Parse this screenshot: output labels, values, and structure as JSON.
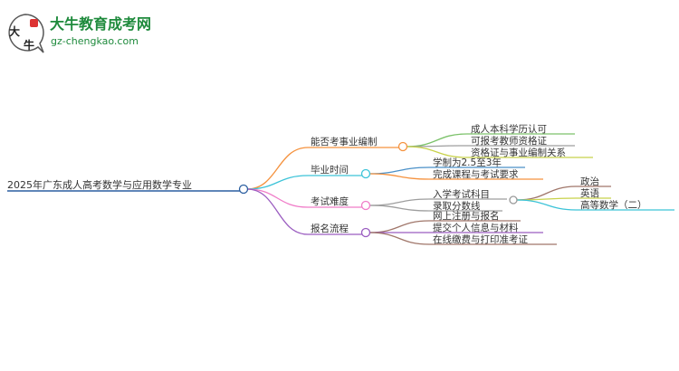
{
  "logo": {
    "name": "大牛教育成考网",
    "url": "gz-chengkao.com",
    "mark": "大牛"
  },
  "root": {
    "label": "2025年广东成人高考数学与应用数学专业"
  },
  "branches": [
    {
      "label": "能否考事业编制",
      "color": "#f5923e",
      "children": [
        {
          "label": "成人本科学历认可",
          "color": "#7cc26a"
        },
        {
          "label": "可报考教师资格证",
          "color": "#9e9e9e"
        },
        {
          "label": "资格证与事业编制关系",
          "color": "#c8d24a"
        }
      ]
    },
    {
      "label": "毕业时间",
      "color": "#3cc3d8",
      "children": [
        {
          "label": "学制为2.5至3年",
          "color": "#4a90c8"
        },
        {
          "label": "完成课程与考试要求",
          "color": "#f5923e"
        }
      ]
    },
    {
      "label": "考试难度",
      "color": "#f07cc8",
      "children": [
        {
          "label": "入学考试科目",
          "color": "#9e9e9e",
          "children": [
            {
              "label": "政治",
              "color": "#a0766a"
            },
            {
              "label": "英语",
              "color": "#c8d24a"
            },
            {
              "label": "高等数学（二）",
              "color": "#3cc3d8"
            }
          ]
        },
        {
          "label": "录取分数线",
          "color": "#9e9e9e"
        }
      ]
    },
    {
      "label": "报名流程",
      "color": "#9a5cc0",
      "children": [
        {
          "label": "网上注册与报名",
          "color": "#a0766a"
        },
        {
          "label": "提交个人信息与材料",
          "color": "#9a5cc0"
        },
        {
          "label": "在线缴费与打印准考证",
          "color": "#a0766a"
        }
      ]
    }
  ]
}
